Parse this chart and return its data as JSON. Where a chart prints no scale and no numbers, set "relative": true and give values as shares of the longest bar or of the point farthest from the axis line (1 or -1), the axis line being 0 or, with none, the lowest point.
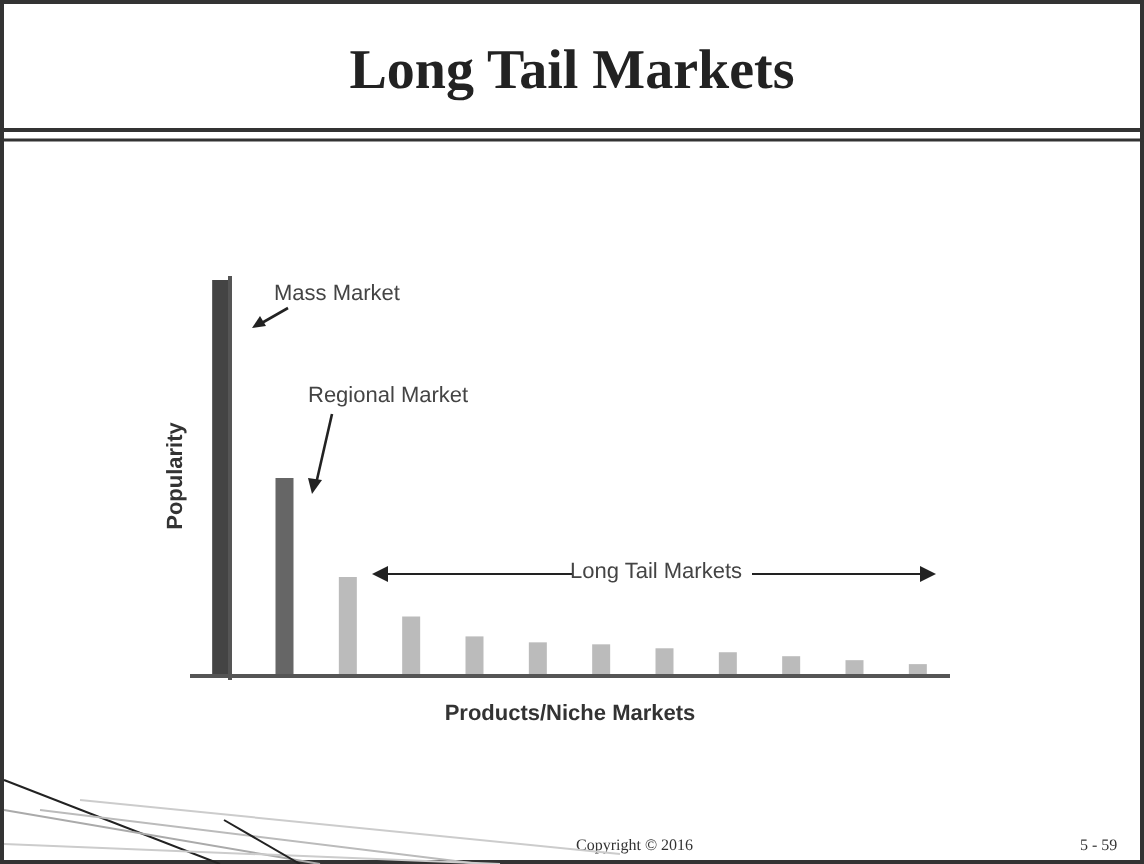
{
  "chart_data": {
    "type": "bar",
    "title": "Long Tail Markets",
    "xlabel": "Products/Niche Markets",
    "ylabel": "Popularity",
    "relative": true,
    "categories": [
      null,
      null,
      null,
      null,
      null,
      null,
      null,
      null,
      null,
      null,
      null,
      null
    ],
    "values": [
      1,
      0.5,
      0.25,
      0.15,
      0.1,
      0.085,
      0.08,
      0.07,
      0.06,
      0.05,
      0.04,
      0.03
    ],
    "colors": [
      "#444444",
      "#666666",
      "#bbbbbb",
      "#bbbbbb",
      "#bbbbbb",
      "#bbbbbb",
      "#bbbbbb",
      "#bbbbbb",
      "#bbbbbb",
      "#bbbbbb",
      "#bbbbbb",
      "#bbbbbb"
    ],
    "annotations": [
      "Mass Market",
      "Regional Market",
      "Long Tail Markets",
      "Copyright © 2016",
      "5 - 59"
    ]
  }
}
